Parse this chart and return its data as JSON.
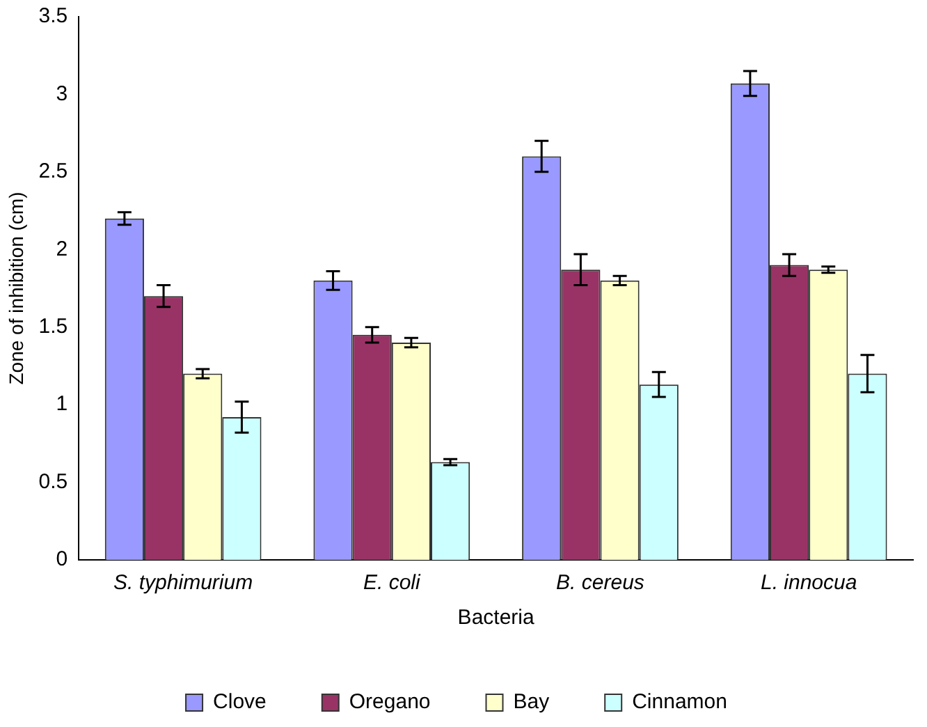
{
  "chart_data": {
    "type": "bar",
    "xlabel": "Bacteria",
    "ylabel": "Zone of inhibition (cm)",
    "categories": [
      "S. typhimurium",
      "E. coli",
      "B. cereus",
      "L. innocua"
    ],
    "series": [
      {
        "name": "Clove",
        "color": "#9999ff",
        "values": [
          2.2,
          1.8,
          2.6,
          3.07
        ],
        "errors": [
          0.04,
          0.06,
          0.1,
          0.08
        ]
      },
      {
        "name": "Oregano",
        "color": "#993366",
        "values": [
          1.7,
          1.45,
          1.87,
          1.9
        ],
        "errors": [
          0.07,
          0.05,
          0.1,
          0.07
        ]
      },
      {
        "name": "Bay",
        "color": "#ffffcc",
        "values": [
          1.2,
          1.4,
          1.8,
          1.87
        ],
        "errors": [
          0.03,
          0.03,
          0.03,
          0.02
        ]
      },
      {
        "name": "Cinnamon",
        "color": "#ccffff",
        "values": [
          0.92,
          0.63,
          1.13,
          1.2
        ],
        "errors": [
          0.1,
          0.02,
          0.08,
          0.12
        ]
      }
    ],
    "ylim": [
      0,
      3.5
    ],
    "yticks": [
      0,
      0.5,
      1,
      1.5,
      2,
      2.5,
      3,
      3.5
    ],
    "grid": false,
    "legend": "bottom"
  }
}
